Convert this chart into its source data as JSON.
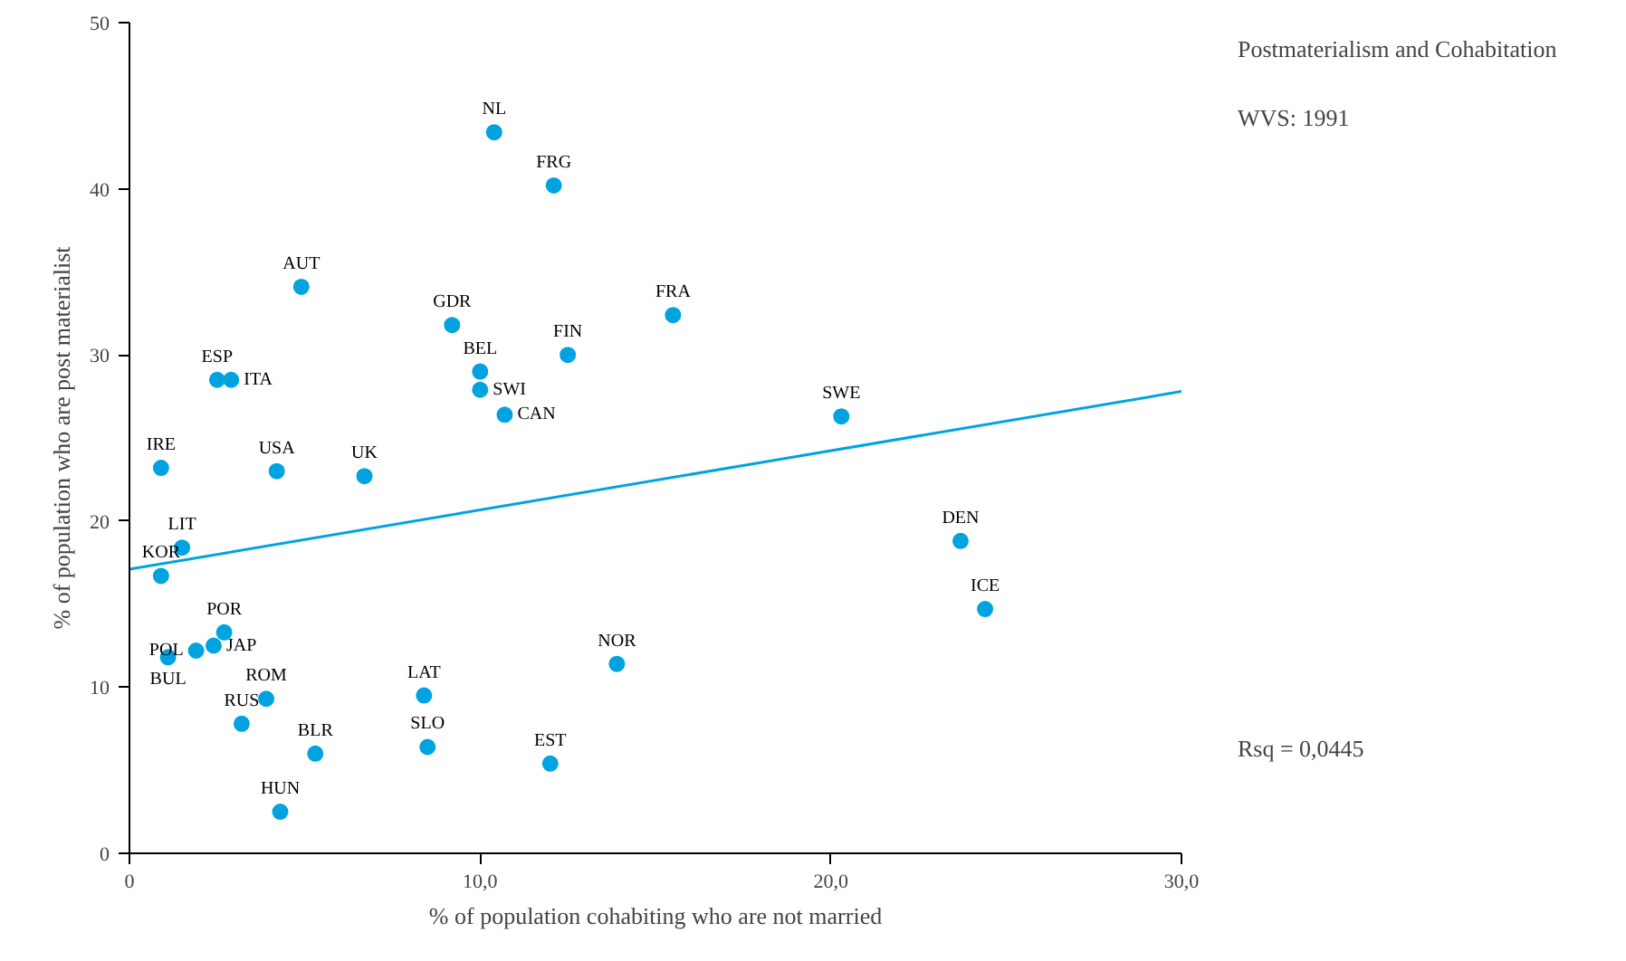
{
  "chart_data": {
    "type": "scatter",
    "title": "Postmaterialism and Cohabitation",
    "xlabel": "% of population cohabiting who are not married",
    "ylabel": "% of population who are post materialist",
    "xlim": [
      0,
      30
    ],
    "ylim": [
      0,
      50
    ],
    "xticks": [
      0,
      {
        "value": 10,
        "label": "10,0"
      },
      {
        "value": 20,
        "label": "20,0"
      },
      {
        "value": 30,
        "label": "30,0"
      }
    ],
    "yticks": [
      0,
      10,
      20,
      30,
      40,
      50
    ],
    "grid": false,
    "marker": "circle",
    "series": [
      {
        "color": "#00a3e0",
        "x": [
          10.4,
          12.1,
          4.9,
          9.2,
          15.5,
          12.5,
          10.0,
          10.0,
          10.7,
          2.5,
          2.9,
          20.3,
          0.9,
          4.2,
          6.7,
          23.7,
          1.5,
          0.9,
          24.4,
          2.7,
          2.4,
          1.9,
          1.1,
          13.9,
          8.4,
          3.9,
          3.2,
          5.3,
          8.5,
          12.0,
          4.3
        ],
        "values": [
          43.4,
          40.2,
          34.1,
          31.8,
          32.4,
          30.0,
          29.0,
          27.9,
          26.4,
          28.5,
          28.5,
          26.3,
          23.2,
          23.0,
          22.7,
          18.8,
          18.4,
          16.7,
          14.7,
          13.3,
          12.5,
          12.2,
          11.8,
          11.4,
          9.5,
          9.3,
          7.8,
          6.0,
          6.4,
          5.4,
          2.5
        ]
      },
      {
        "type": "line",
        "marker": "none",
        "color": "#00a3e0",
        "x": [
          0,
          30
        ],
        "values": [
          17.1,
          27.8
        ]
      }
    ],
    "annotations": [
      "WVS:  1991",
      "Rsq = 0,0445",
      {
        "text": "NL",
        "x": 10.4,
        "y": 43.4
      },
      {
        "text": "FRG",
        "x": 12.1,
        "y": 40.2
      },
      {
        "text": "AUT",
        "x": 4.9,
        "y": 34.1
      },
      {
        "text": "GDR",
        "x": 9.2,
        "y": 31.8
      },
      {
        "text": "FRA",
        "x": 15.5,
        "y": 32.4
      },
      {
        "text": "FIN",
        "x": 12.5,
        "y": 30.0
      },
      {
        "text": "BEL",
        "x": 10.0,
        "y": 29.0
      },
      {
        "text": "SWI",
        "x": 10.0,
        "y": 27.9
      },
      {
        "text": "CAN",
        "x": 10.7,
        "y": 26.4
      },
      {
        "text": "ESP",
        "x": 2.5,
        "y": 28.5
      },
      {
        "text": "ITA",
        "x": 2.9,
        "y": 28.5
      },
      {
        "text": "SWE",
        "x": 20.3,
        "y": 26.3
      },
      {
        "text": "IRE",
        "x": 0.9,
        "y": 23.2
      },
      {
        "text": "USA",
        "x": 4.2,
        "y": 23.0
      },
      {
        "text": "UK",
        "x": 6.7,
        "y": 22.7
      },
      {
        "text": "DEN",
        "x": 23.7,
        "y": 18.8
      },
      {
        "text": "LIT",
        "x": 1.5,
        "y": 18.4
      },
      {
        "text": "KOR",
        "x": 0.9,
        "y": 16.7
      },
      {
        "text": "ICE",
        "x": 24.4,
        "y": 14.7
      },
      {
        "text": "POR",
        "x": 2.7,
        "y": 13.3
      },
      {
        "text": "JAP",
        "x": 2.4,
        "y": 12.5
      },
      {
        "text": "POL",
        "x": 1.9,
        "y": 12.2
      },
      {
        "text": "BUL",
        "x": 1.1,
        "y": 11.8
      },
      {
        "text": "NOR",
        "x": 13.9,
        "y": 11.4
      },
      {
        "text": "LAT",
        "x": 8.4,
        "y": 9.5
      },
      {
        "text": "ROM",
        "x": 3.9,
        "y": 9.3
      },
      {
        "text": "RUS",
        "x": 3.2,
        "y": 7.8
      },
      {
        "text": "BLR",
        "x": 5.3,
        "y": 6.0
      },
      {
        "text": "SLO",
        "x": 8.5,
        "y": 6.4
      },
      {
        "text": "EST",
        "x": 12.0,
        "y": 5.4
      },
      {
        "text": "HUN",
        "x": 4.3,
        "y": 2.5
      }
    ]
  }
}
